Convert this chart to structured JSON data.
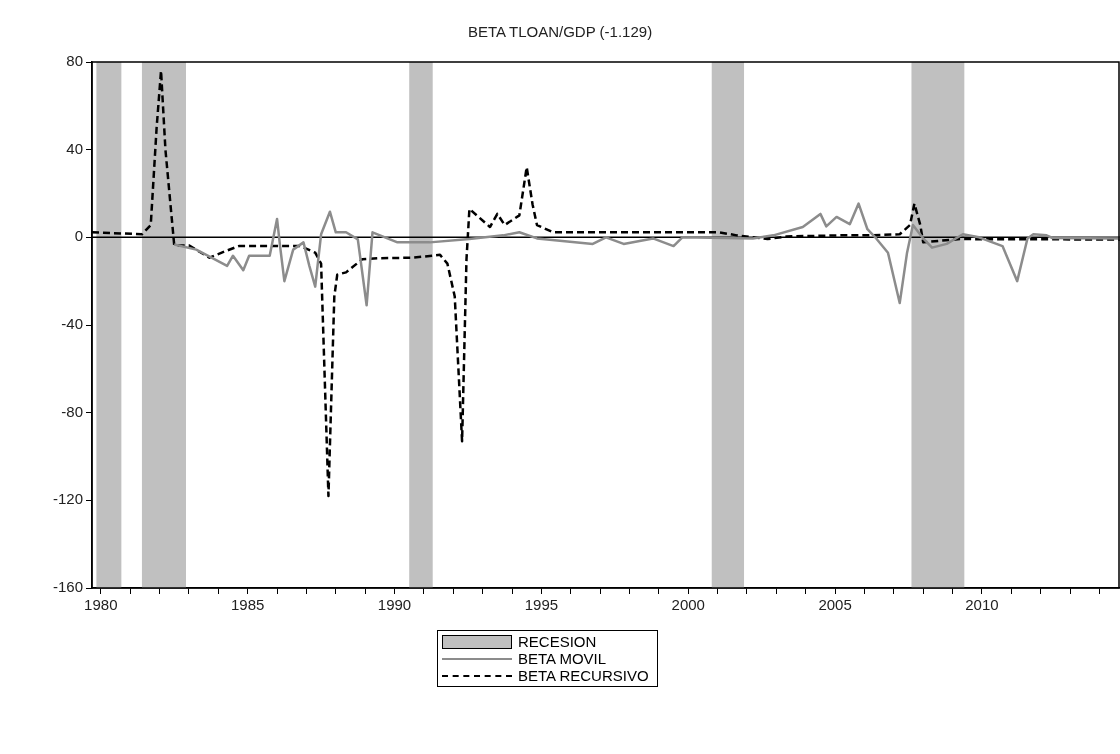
{
  "chart_data": {
    "type": "line",
    "title": "BETA TLOAN/GDP (-1.129)",
    "xlim": [
      1979.7,
      2014.7
    ],
    "xticks": [
      {
        "value": 1980,
        "label": "1980"
      },
      {
        "value": 1981,
        "label": null
      },
      {
        "value": 1982,
        "label": null
      },
      {
        "value": 1983,
        "label": null
      },
      {
        "value": 1984,
        "label": null
      },
      {
        "value": 1985,
        "label": "1985"
      },
      {
        "value": 1986,
        "label": null
      },
      {
        "value": 1987,
        "label": null
      },
      {
        "value": 1988,
        "label": null
      },
      {
        "value": 1989,
        "label": null
      },
      {
        "value": 1990,
        "label": "1990"
      },
      {
        "value": 1991,
        "label": null
      },
      {
        "value": 1992,
        "label": null
      },
      {
        "value": 1993,
        "label": null
      },
      {
        "value": 1994,
        "label": null
      },
      {
        "value": 1995,
        "label": "1995"
      },
      {
        "value": 1996,
        "label": null
      },
      {
        "value": 1997,
        "label": null
      },
      {
        "value": 1998,
        "label": null
      },
      {
        "value": 1999,
        "label": null
      },
      {
        "value": 2000,
        "label": "2000"
      },
      {
        "value": 2001,
        "label": null
      },
      {
        "value": 2002,
        "label": null
      },
      {
        "value": 2003,
        "label": null
      },
      {
        "value": 2004,
        "label": null
      },
      {
        "value": 2005,
        "label": "2005"
      },
      {
        "value": 2006,
        "label": null
      },
      {
        "value": 2007,
        "label": null
      },
      {
        "value": 2008,
        "label": null
      },
      {
        "value": 2009,
        "label": null
      },
      {
        "value": 2010,
        "label": "2010"
      },
      {
        "value": 2011,
        "label": null
      },
      {
        "value": 2012,
        "label": null
      },
      {
        "value": 2013,
        "label": null
      },
      {
        "value": 2014,
        "label": null
      }
    ],
    "ylim": [
      -160,
      80
    ],
    "yticks": [
      -160,
      -120,
      -80,
      -40,
      0,
      40,
      80
    ],
    "grid": false,
    "legend": "bottom",
    "marker": "none",
    "bands": [
      {
        "axis": "x",
        "from": 1979.85,
        "to": 1980.7,
        "label": "RECESION",
        "color": "#c0c0c0"
      },
      {
        "axis": "x",
        "from": 1981.4,
        "to": 1982.9,
        "color": "#c0c0c0"
      },
      {
        "axis": "x",
        "from": 1990.5,
        "to": 1991.3,
        "color": "#c0c0c0"
      },
      {
        "axis": "x",
        "from": 2000.8,
        "to": 2001.9,
        "color": "#c0c0c0"
      },
      {
        "axis": "x",
        "from": 2007.6,
        "to": 2009.4,
        "color": "#c0c0c0"
      }
    ],
    "ref_lines": [
      {
        "axis": "y",
        "value": 0,
        "color": "#000000",
        "line_style": "solid"
      }
    ],
    "series": [
      {
        "name": "BETA MOVIL",
        "color": "#8c8c8c",
        "line_style": "solid",
        "x": [
          1982.5,
          1983.25,
          1984.3,
          1984.5,
          1984.85,
          1985.05,
          1985.75,
          1986.0,
          1986.1,
          1986.25,
          1986.55,
          1986.9,
          1987.1,
          1987.3,
          1987.5,
          1987.8,
          1988.0,
          1988.35,
          1988.75,
          1989.05,
          1989.25,
          1990.1,
          1991.2,
          1992.55,
          1993.7,
          1994.25,
          1994.85,
          1996.75,
          1997.2,
          1997.8,
          1998.8,
          1999.5,
          1999.8,
          2002.2,
          2002.9,
          2003.9,
          2004.5,
          2004.7,
          2005.05,
          2005.5,
          2005.8,
          2006.1,
          2006.4,
          2006.8,
          2007.2,
          2007.45,
          2007.65,
          2008.0,
          2008.3,
          2008.8,
          2009.35,
          2009.9,
          2010.7,
          2011.2,
          2011.55,
          2011.75,
          2012.2,
          2012.4,
          2014.7
        ],
        "values": [
          -3.3,
          -5.6,
          -13,
          -8.4,
          -15,
          -8.4,
          -8.4,
          8.4,
          -3.7,
          -20,
          -5.6,
          -2.3,
          -13,
          -22.5,
          1.4,
          11.7,
          2.3,
          2.3,
          -0.9,
          -31,
          2.3,
          -2.3,
          -2.3,
          -0.8,
          0.9,
          2.3,
          -0.5,
          -3,
          0,
          -3,
          -0.5,
          -4,
          0,
          -0.5,
          0.9,
          4.7,
          10.7,
          5,
          9.3,
          6,
          15.4,
          3.7,
          -0.5,
          -7,
          -30,
          -7,
          5.6,
          -0.5,
          -4.7,
          -3,
          1.4,
          0,
          -4,
          -20,
          -0.5,
          1.4,
          0.9,
          -0.3,
          -0.5
        ]
      },
      {
        "name": "BETA RECURSIVO",
        "color": "#000000",
        "line_style": "dashed",
        "x": [
          1979.7,
          1981.4,
          1981.7,
          1981.9,
          1982.05,
          1982.2,
          1982.5,
          1983.0,
          1983.7,
          1984.3,
          1984.7,
          1985.85,
          1986.8,
          1987.3,
          1987.5,
          1987.75,
          1987.95,
          1988.05,
          1988.35,
          1988.9,
          1989.5,
          1990.6,
          1991.55,
          1991.8,
          1992.05,
          1992.3,
          1992.45,
          1992.55,
          1993.25,
          1993.5,
          1993.75,
          1994.25,
          1994.5,
          1994.7,
          1994.85,
          1995.4,
          1997.7,
          1999.95,
          2001.05,
          2001.65,
          2002.7,
          2003.35,
          2005.2,
          2006.1,
          2007.2,
          2007.55,
          2007.7,
          2007.9,
          2008.0,
          2008.55,
          2009.25,
          2014.7
        ],
        "values": [
          2.3,
          1.4,
          5.6,
          50,
          76,
          40,
          -3.7,
          -3.7,
          -9.3,
          -6,
          -4,
          -4,
          -4,
          -7,
          -12,
          -118,
          -27,
          -17,
          -16,
          -10,
          -9.5,
          -9.3,
          -8,
          -12,
          -27,
          -93,
          -10,
          13,
          4.7,
          10.7,
          5.6,
          10,
          32,
          15,
          5.6,
          2.3,
          2.3,
          2.3,
          2.3,
          0.9,
          -0.8,
          0.4,
          0.9,
          0.9,
          1.4,
          5.6,
          15.4,
          5.6,
          -2.3,
          -1.6,
          -0.8,
          -1
        ]
      }
    ]
  }
}
